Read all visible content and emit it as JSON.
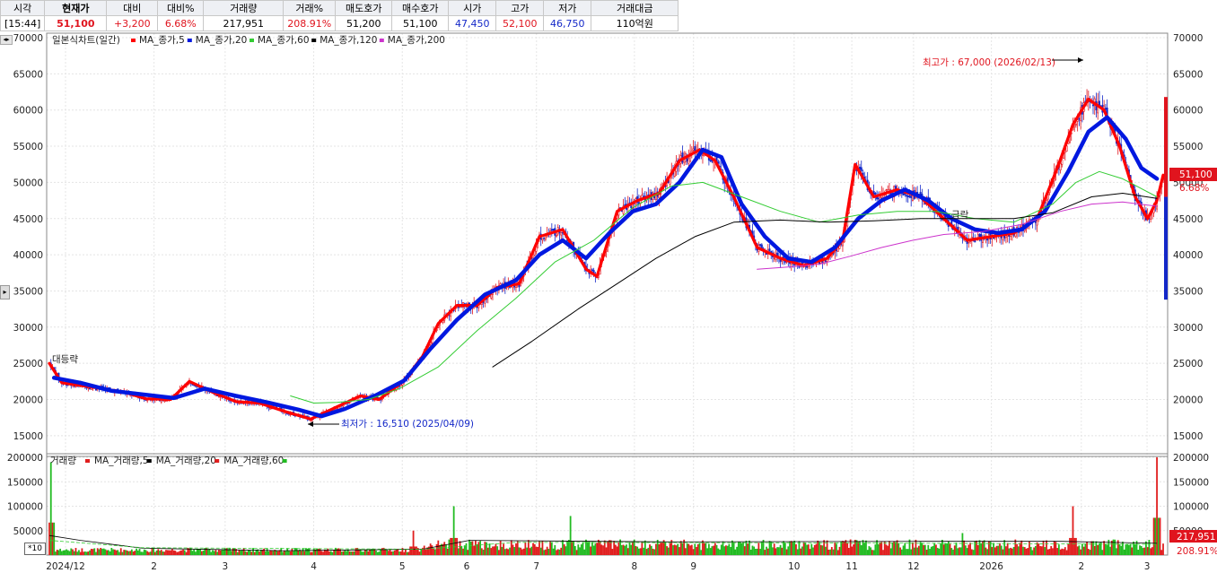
{
  "quote": {
    "headers": [
      "시각",
      "현재가",
      "대비",
      "대비%",
      "거래량",
      "거래%",
      "매도호가",
      "매수호가",
      "시가",
      "고가",
      "저가",
      "거래대금"
    ],
    "values": [
      "[15:44]",
      "51,100",
      "+3,200",
      "6.68%",
      "217,951",
      "208.91%",
      "51,200",
      "51,100",
      "47,450",
      "52,100",
      "46,750",
      "110억원"
    ]
  },
  "legend_price": {
    "name": "일본식차트(일간)",
    "items": [
      "MA_종가,5",
      "MA_종가,20",
      "MA_종가,60",
      "MA_종가,120",
      "MA_종가,200"
    ]
  },
  "legend_volume": {
    "name": "거래량",
    "items": [
      "MA_거래량,5",
      "MA_거래량,20",
      "MA_거래량,60"
    ]
  },
  "annotations": {
    "high": "최고가 : 67,000 (2026/02/13)",
    "low": "최저가 : 16,510 (2025/04/09)",
    "drop": "급락",
    "flat": "대등략"
  },
  "price_badge": {
    "price": "51,100",
    "pct": "6.68%"
  },
  "volume_badge": {
    "volume": "217,951",
    "pct": "208.91%"
  },
  "x10_label": "*10",
  "colors": {
    "up": "#e0141e",
    "down": "#1428c8",
    "ma5": "#ff0000",
    "ma20": "#0018e0",
    "ma60": "#33cc33",
    "ma120": "#000000",
    "ma200": "#cc33cc",
    "vol_up": "#e01e1e",
    "vol_down": "#22bb22"
  },
  "chart_data": {
    "type": "line",
    "title": "일본식차트(일간)",
    "x_ticks": [
      "2024/12",
      "2",
      "3",
      "4",
      "5",
      "6",
      "7",
      "8",
      "9",
      "10",
      "11",
      "12",
      "2026",
      "2",
      "3"
    ],
    "price_axis": {
      "ylim": [
        13000,
        70000
      ],
      "ticks": [
        15000,
        20000,
        25000,
        30000,
        35000,
        40000,
        45000,
        50000,
        55000,
        60000,
        65000,
        70000
      ]
    },
    "volume_axis": {
      "ylim": [
        0,
        200000
      ],
      "ticks": [
        50000,
        100000,
        150000,
        200000
      ]
    },
    "series": [
      {
        "name": "MA_종가,5",
        "points": [
          [
            0,
            25000
          ],
          [
            8,
            22300
          ],
          [
            25,
            21800
          ],
          [
            48,
            21000
          ],
          [
            62,
            20100
          ],
          [
            78,
            20000
          ],
          [
            90,
            22500
          ],
          [
            105,
            21000
          ],
          [
            120,
            19700
          ],
          [
            135,
            19500
          ],
          [
            152,
            18300
          ],
          [
            168,
            17300
          ],
          [
            185,
            19000
          ],
          [
            200,
            20500
          ],
          [
            212,
            20000
          ],
          [
            228,
            22600
          ],
          [
            240,
            26000
          ],
          [
            250,
            30500
          ],
          [
            262,
            33000
          ],
          [
            275,
            33000
          ],
          [
            288,
            35500
          ],
          [
            302,
            36000
          ],
          [
            315,
            42500
          ],
          [
            330,
            43500
          ],
          [
            345,
            38000
          ],
          [
            352,
            37000
          ],
          [
            365,
            46000
          ],
          [
            378,
            47500
          ],
          [
            392,
            48500
          ],
          [
            405,
            53000
          ],
          [
            418,
            54500
          ],
          [
            428,
            53000
          ],
          [
            440,
            48000
          ],
          [
            455,
            41000
          ],
          [
            470,
            39500
          ],
          [
            485,
            38500
          ],
          [
            500,
            39500
          ],
          [
            510,
            42000
          ],
          [
            518,
            52500
          ],
          [
            530,
            48000
          ],
          [
            545,
            49000
          ],
          [
            560,
            48000
          ],
          [
            575,
            45000
          ],
          [
            590,
            42000
          ],
          [
            605,
            42500
          ],
          [
            620,
            43000
          ],
          [
            635,
            45000
          ],
          [
            648,
            52000
          ],
          [
            658,
            58000
          ],
          [
            668,
            61500
          ],
          [
            678,
            60000
          ],
          [
            688,
            55000
          ],
          [
            698,
            48000
          ],
          [
            706,
            45000
          ],
          [
            712,
            47500
          ],
          [
            716,
            51000
          ]
        ]
      },
      {
        "name": "MA_종가,20",
        "points": [
          [
            3,
            23000
          ],
          [
            20,
            22300
          ],
          [
            40,
            21200
          ],
          [
            60,
            20700
          ],
          [
            80,
            20200
          ],
          [
            100,
            21500
          ],
          [
            120,
            20500
          ],
          [
            140,
            19600
          ],
          [
            160,
            18600
          ],
          [
            175,
            17700
          ],
          [
            190,
            18700
          ],
          [
            210,
            20600
          ],
          [
            228,
            22600
          ],
          [
            245,
            27000
          ],
          [
            262,
            31000
          ],
          [
            280,
            34500
          ],
          [
            300,
            36500
          ],
          [
            315,
            40000
          ],
          [
            330,
            42000
          ],
          [
            345,
            39500
          ],
          [
            360,
            43000
          ],
          [
            375,
            46000
          ],
          [
            390,
            47000
          ],
          [
            405,
            50000
          ],
          [
            420,
            54500
          ],
          [
            432,
            53500
          ],
          [
            445,
            47000
          ],
          [
            460,
            42500
          ],
          [
            475,
            39500
          ],
          [
            490,
            39000
          ],
          [
            505,
            41000
          ],
          [
            520,
            45000
          ],
          [
            535,
            47500
          ],
          [
            550,
            49000
          ],
          [
            565,
            47500
          ],
          [
            580,
            45000
          ],
          [
            595,
            43500
          ],
          [
            610,
            43000
          ],
          [
            625,
            43500
          ],
          [
            640,
            46000
          ],
          [
            655,
            51500
          ],
          [
            668,
            57000
          ],
          [
            680,
            59000
          ],
          [
            692,
            56000
          ],
          [
            702,
            52000
          ],
          [
            712,
            50500
          ]
        ]
      },
      {
        "name": "MA_종가,60",
        "points": [
          [
            155,
            20500
          ],
          [
            170,
            19500
          ],
          [
            185,
            19600
          ],
          [
            205,
            20000
          ],
          [
            225,
            21500
          ],
          [
            250,
            24500
          ],
          [
            275,
            29500
          ],
          [
            300,
            34000
          ],
          [
            325,
            39000
          ],
          [
            350,
            42000
          ],
          [
            375,
            46500
          ],
          [
            400,
            49500
          ],
          [
            420,
            50000
          ],
          [
            445,
            48000
          ],
          [
            470,
            46000
          ],
          [
            495,
            44500
          ],
          [
            520,
            45500
          ],
          [
            545,
            46000
          ],
          [
            570,
            46000
          ],
          [
            595,
            45000
          ],
          [
            620,
            44500
          ],
          [
            645,
            47000
          ],
          [
            660,
            50000
          ],
          [
            675,
            51500
          ],
          [
            690,
            50500
          ],
          [
            712,
            48000
          ]
        ]
      },
      {
        "name": "MA_종가,120",
        "points": [
          [
            285,
            24500
          ],
          [
            310,
            28000
          ],
          [
            340,
            32500
          ],
          [
            365,
            36000
          ],
          [
            390,
            39500
          ],
          [
            415,
            42500
          ],
          [
            440,
            44500
          ],
          [
            470,
            44800
          ],
          [
            500,
            44500
          ],
          [
            530,
            44700
          ],
          [
            560,
            45000
          ],
          [
            590,
            45000
          ],
          [
            620,
            45000
          ],
          [
            645,
            45800
          ],
          [
            670,
            48000
          ],
          [
            690,
            48500
          ],
          [
            712,
            47800
          ]
        ]
      },
      {
        "name": "MA_종가,200",
        "points": [
          [
            455,
            38000
          ],
          [
            475,
            38300
          ],
          [
            495,
            38700
          ],
          [
            515,
            39800
          ],
          [
            535,
            41000
          ],
          [
            555,
            42000
          ],
          [
            575,
            42800
          ],
          [
            600,
            43200
          ],
          [
            625,
            44200
          ],
          [
            650,
            46000
          ],
          [
            670,
            47000
          ],
          [
            690,
            47300
          ],
          [
            712,
            46700
          ]
        ]
      }
    ],
    "volume": {
      "note": "daily bars, values in shares",
      "peaks": [
        [
          1,
          190000
        ],
        [
          234,
          50000
        ],
        [
          260,
          100000
        ],
        [
          335,
          80000
        ],
        [
          587,
          45000
        ],
        [
          658,
          100000
        ],
        [
          712,
          217951
        ]
      ]
    }
  }
}
